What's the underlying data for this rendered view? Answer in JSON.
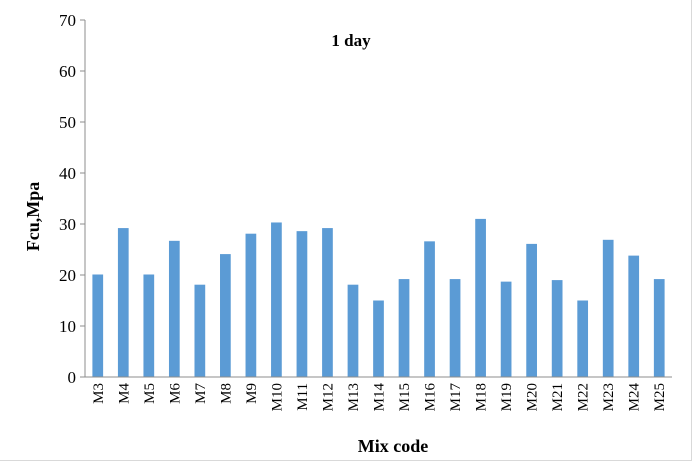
{
  "chart_data": {
    "type": "bar",
    "title": "1 day",
    "xlabel": "Mix code",
    "ylabel": "Fcu,Mpa",
    "ylim": [
      0,
      70
    ],
    "yticks": [
      0,
      10,
      20,
      30,
      40,
      50,
      60,
      70
    ],
    "grid": false,
    "legend": "none",
    "bar_color": "#5b9bd5",
    "categories": [
      "M3",
      "M4",
      "M5",
      "M6",
      "M7",
      "M8",
      "M9",
      "M10",
      "M11",
      "M12",
      "M13",
      "M14",
      "M15",
      "M16",
      "M17",
      "M18",
      "M19",
      "M20",
      "M21",
      "M22",
      "M23",
      "M24",
      "M25"
    ],
    "values": [
      20.1,
      29.2,
      20.1,
      26.7,
      18.1,
      24.1,
      28.1,
      30.3,
      28.6,
      29.2,
      18.1,
      15.0,
      19.2,
      26.6,
      19.2,
      31.0,
      18.7,
      26.1,
      19.0,
      15.0,
      26.9,
      23.8,
      19.2
    ]
  }
}
